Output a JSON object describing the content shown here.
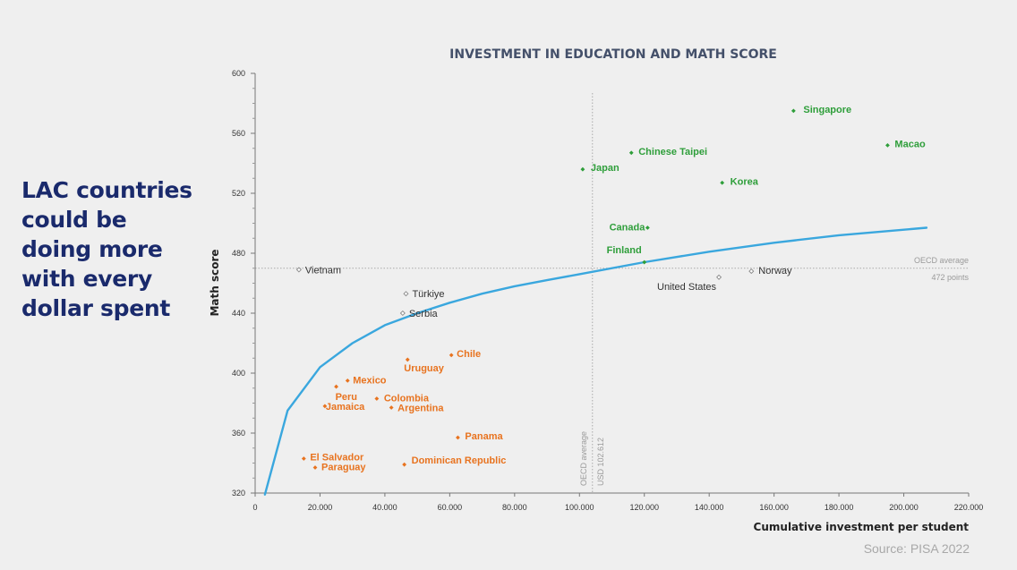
{
  "side_text": "LAC countries could be doing more with every dollar spent",
  "source": "Source: PISA 2022",
  "colors": {
    "advanced": "#2e9e3a",
    "lac": "#e8731f",
    "other": "#333333",
    "curve": "#3aa7de",
    "reference": "#aaaaaa"
  },
  "chart_data": {
    "type": "scatter",
    "title": "INVESTMENT IN EDUCATION AND MATH SCORE",
    "xlabel": "Cumulative investment per student",
    "ylabel": "Math score",
    "xlim": [
      0,
      220000
    ],
    "ylim": [
      320,
      600
    ],
    "x_ticks": [
      0,
      20000,
      40000,
      60000,
      80000,
      100000,
      120000,
      140000,
      160000,
      180000,
      200000,
      220000
    ],
    "x_tick_labels": [
      "0",
      "20.000",
      "40.000",
      "60.000",
      "80.000",
      "100.000",
      "120.000",
      "140.000",
      "160.000",
      "180.000",
      "200.000",
      "220.000"
    ],
    "y_ticks": [
      320,
      360,
      400,
      440,
      480,
      520,
      560,
      600
    ],
    "y_tick_labels": [
      "320",
      "360",
      "400",
      "440",
      "480",
      "520",
      "560",
      "600"
    ],
    "grid": false,
    "reference_lines": {
      "horizontal": {
        "value": 470,
        "labels": [
          "OECD average",
          "472 points"
        ]
      },
      "vertical": {
        "value": 104000,
        "labels": [
          "OECD average",
          "USD 102.612"
        ]
      }
    },
    "trend_curve": {
      "x": [
        3000,
        10000,
        20000,
        30000,
        40000,
        50000,
        60000,
        70000,
        80000,
        90000,
        100000,
        120000,
        140000,
        160000,
        180000,
        207000
      ],
      "y": [
        319,
        375,
        404,
        420,
        432,
        440,
        447,
        453,
        458,
        462,
        466,
        474,
        481,
        487,
        492,
        497
      ]
    },
    "series": [
      {
        "group": "advanced",
        "points": [
          {
            "name": "Singapore",
            "x": 166000,
            "y": 575
          },
          {
            "name": "Macao",
            "x": 195000,
            "y": 552
          },
          {
            "name": "Chinese Taipei",
            "x": 116000,
            "y": 547
          },
          {
            "name": "Japan",
            "x": 101000,
            "y": 536
          },
          {
            "name": "Korea",
            "x": 144000,
            "y": 527
          },
          {
            "name": "Canada",
            "x": 121000,
            "y": 497
          },
          {
            "name": "Finland",
            "x": 120000,
            "y": 474
          }
        ]
      },
      {
        "group": "other",
        "points": [
          {
            "name": "Vietnam",
            "x": 13500,
            "y": 469
          },
          {
            "name": "Norway",
            "x": 153000,
            "y": 468
          },
          {
            "name": "United States",
            "x": 143000,
            "y": 464
          },
          {
            "name": "Türkiye",
            "x": 46500,
            "y": 453
          },
          {
            "name": "Serbia",
            "x": 45500,
            "y": 440
          }
        ]
      },
      {
        "group": "lac",
        "points": [
          {
            "name": "Chile",
            "x": 60500,
            "y": 412
          },
          {
            "name": "Uruguay",
            "x": 47000,
            "y": 409
          },
          {
            "name": "Mexico",
            "x": 28500,
            "y": 395
          },
          {
            "name": "Peru",
            "x": 25000,
            "y": 391
          },
          {
            "name": "Colombia",
            "x": 37500,
            "y": 383
          },
          {
            "name": "Jamaica",
            "x": 21500,
            "y": 378
          },
          {
            "name": "Argentina",
            "x": 42000,
            "y": 377
          },
          {
            "name": "Panama",
            "x": 62500,
            "y": 357
          },
          {
            "name": "El Salvador",
            "x": 15000,
            "y": 343
          },
          {
            "name": "Paraguay",
            "x": 18500,
            "y": 337
          },
          {
            "name": "Dominican Republic",
            "x": 46000,
            "y": 339
          }
        ]
      }
    ]
  }
}
